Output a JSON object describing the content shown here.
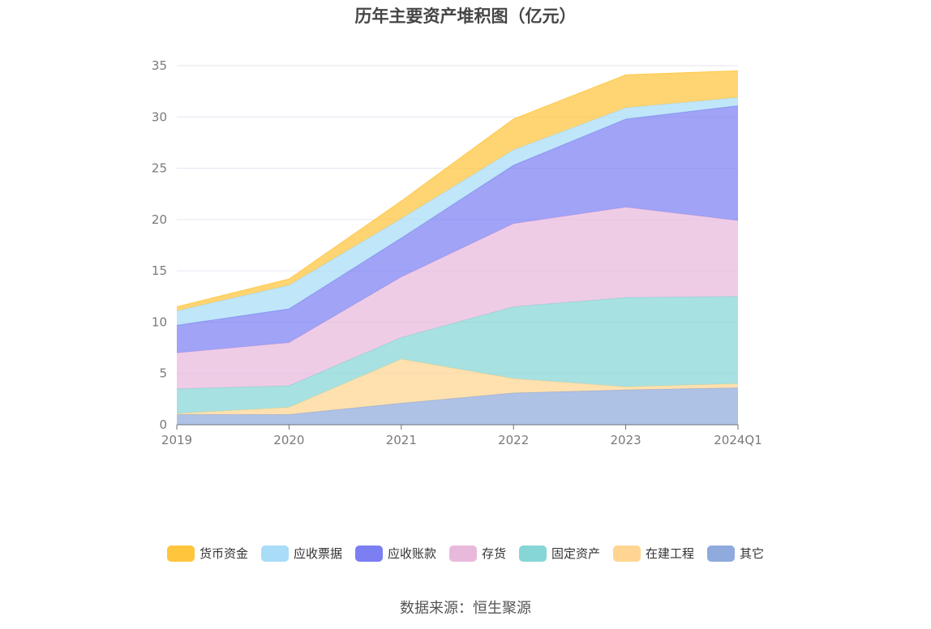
{
  "source": "数据来源：恒生聚源",
  "chart_data": {
    "type": "area",
    "stacked": true,
    "title": "历年主要资产堆积图（亿元）",
    "x": [
      "2019",
      "2020",
      "2021",
      "2022",
      "2023",
      "2024Q1"
    ],
    "ylim": [
      0,
      35
    ],
    "yticks": [
      0,
      5,
      10,
      15,
      20,
      25,
      30,
      35
    ],
    "grid": true,
    "legend_position": "bottom",
    "series": [
      {
        "name": "其它",
        "color": "#8faadc",
        "values": [
          1.0,
          1.0,
          2.1,
          3.1,
          3.4,
          3.6
        ]
      },
      {
        "name": "在建工程",
        "color": "#ffd591",
        "values": [
          0.1,
          0.7,
          4.3,
          1.4,
          0.3,
          0.4
        ]
      },
      {
        "name": "固定资产",
        "color": "#86d6d6",
        "values": [
          2.4,
          2.1,
          2.1,
          7.0,
          8.7,
          8.5
        ]
      },
      {
        "name": "存货",
        "color": "#e9b9dc",
        "values": [
          3.5,
          4.2,
          5.9,
          8.1,
          8.8,
          7.4
        ]
      },
      {
        "name": "应收账款",
        "color": "#7b7ff2",
        "values": [
          2.7,
          3.3,
          3.8,
          5.7,
          8.6,
          11.2
        ]
      },
      {
        "name": "应收票据",
        "color": "#a8dcf7",
        "values": [
          1.4,
          2.3,
          1.9,
          1.5,
          1.1,
          0.8
        ]
      },
      {
        "name": "货币资金",
        "color": "#ffc53d",
        "values": [
          0.4,
          0.6,
          1.7,
          3.0,
          3.2,
          2.6
        ]
      }
    ]
  }
}
